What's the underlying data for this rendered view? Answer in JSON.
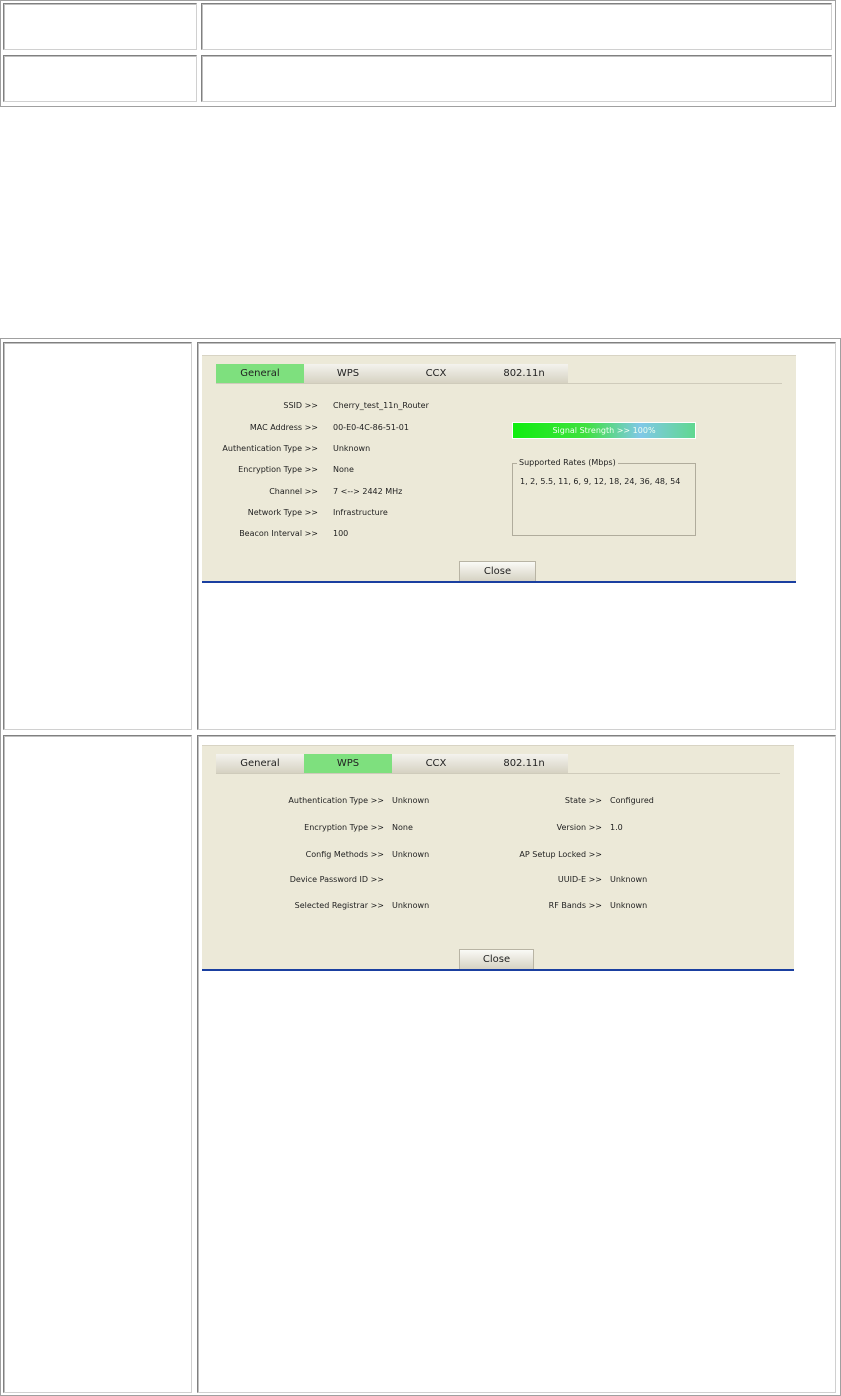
{
  "panel_general": {
    "tabs": [
      "General",
      "WPS",
      "CCX",
      "802.11n"
    ],
    "active_tab": "General",
    "fields": [
      {
        "label": "SSID >>",
        "value": "Cherry_test_11n_Router"
      },
      {
        "label": "MAC Address >>",
        "value": "00-E0-4C-86-51-01"
      },
      {
        "label": "Authentication Type >>",
        "value": "Unknown"
      },
      {
        "label": "Encryption Type >>",
        "value": "None"
      },
      {
        "label": "Channel >>",
        "value": "7 <--> 2442 MHz"
      },
      {
        "label": "Network Type >>",
        "value": "Infrastructure"
      },
      {
        "label": "Beacon Interval >>",
        "value": "100"
      }
    ],
    "signal_strength_label": "Signal Strength >> 100%",
    "signal_strength_percent": 100,
    "supported_rates_title": "Supported Rates (Mbps)",
    "supported_rates": "1, 2, 5.5, 11, 6, 9, 12, 18, 24, 36, 48, 54",
    "close_label": "Close"
  },
  "panel_wps": {
    "tabs": [
      "General",
      "WPS",
      "CCX",
      "802.11n"
    ],
    "active_tab": "WPS",
    "left_fields": [
      {
        "label": "Authentication Type >>",
        "value": "Unknown"
      },
      {
        "label": "Encryption Type >>",
        "value": "None"
      },
      {
        "label": "Config Methods >>",
        "value": "Unknown"
      },
      {
        "label": "Device Password ID >>",
        "value": ""
      },
      {
        "label": "Selected Registrar >>",
        "value": "Unknown"
      }
    ],
    "right_fields": [
      {
        "label": "State >>",
        "value": "Configured"
      },
      {
        "label": "Version >>",
        "value": "1.0"
      },
      {
        "label": "AP Setup Locked >>",
        "value": ""
      },
      {
        "label": "UUID-E >>",
        "value": "Unknown"
      },
      {
        "label": "RF Bands >>",
        "value": "Unknown"
      }
    ],
    "close_label": "Close"
  },
  "colors": {
    "active_tab": "#7ee07e",
    "panel_bg": "#ece9d8",
    "bottom_rule": "#1a3fa0"
  }
}
